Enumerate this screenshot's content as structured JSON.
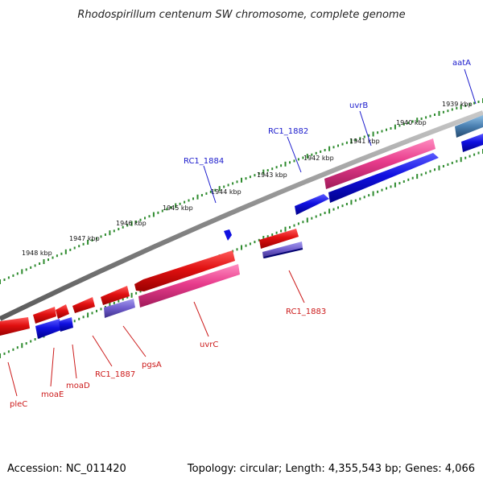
{
  "title": "Rhodospirillum centenum SW chromosome, complete genome",
  "footer": {
    "accession": "Accession: NC_011420",
    "summary": "Topology: circular; Length: 4,355,543 bp; Genes: 4,066"
  },
  "kbp_labels": [
    "1939 kbp",
    "1940 kbp",
    "1941 kbp",
    "1942 kbp",
    "1943 kbp",
    "1944 kbp",
    "1945 kbp",
    "1946 kbp",
    "1947 kbp",
    "1948 kbp"
  ],
  "gene_labels_top": [
    "aatA",
    "uvrB",
    "RC1_1882",
    "RC1_1884"
  ],
  "gene_labels_bottom": [
    "RC1_1883",
    "uvrC",
    "pgsA",
    "RC1_1887",
    "moaD",
    "moaE",
    "pleC"
  ],
  "colors": {
    "backbone": "#8a8a8a",
    "ticks": "#2e8b2e",
    "red_gene": "#e01010",
    "pink_gene": "#e83c8c",
    "blue_gene": "#1010e0",
    "purple_gene": "#6f5ccc",
    "steel_gene": "#4a7fb0",
    "label_blue": "#1a1acc",
    "label_red": "#cc1a1a"
  }
}
